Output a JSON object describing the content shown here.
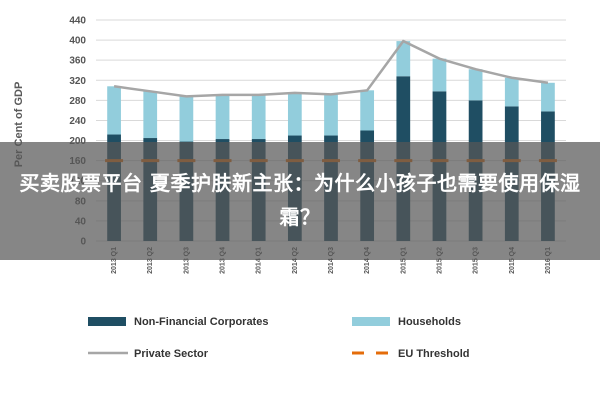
{
  "chart_data": {
    "type": "bar",
    "stacked": true,
    "ylabel": "Per Cent of GDP",
    "ylim": [
      0,
      440
    ],
    "yticks": [
      0,
      40,
      80,
      120,
      160,
      200,
      240,
      280,
      320,
      360,
      400,
      440
    ],
    "grid": true,
    "legend_position": "bottom",
    "categories": [
      "2013 Q1",
      "2013 Q2",
      "2013 Q3",
      "2013 Q4",
      "2014 Q1",
      "2014 Q2",
      "2014 Q3",
      "2014 Q4",
      "2015 Q1",
      "2015 Q2",
      "2015 Q3",
      "2015 Q4",
      "2016 Q1"
    ],
    "series": [
      {
        "name": "Non-Financial Corporates",
        "kind": "bar",
        "color": "#1f4e63",
        "values": [
          212,
          205,
          198,
          203,
          203,
          210,
          210,
          220,
          328,
          298,
          280,
          268,
          258
        ]
      },
      {
        "name": "Households",
        "kind": "bar",
        "color": "#92cddc",
        "values": [
          96,
          93,
          90,
          88,
          88,
          85,
          82,
          80,
          70,
          65,
          62,
          57,
          57
        ]
      },
      {
        "name": "Private Sector",
        "kind": "line",
        "color": "#a6a6a6",
        "values": [
          308,
          298,
          288,
          291,
          291,
          295,
          292,
          300,
          398,
          363,
          342,
          325,
          315
        ]
      },
      {
        "name": "EU Threshold",
        "kind": "dashed",
        "color": "#e46c0a",
        "values": [
          160,
          160,
          160,
          160,
          160,
          160,
          160,
          160,
          160,
          160,
          160,
          160,
          160
        ]
      }
    ]
  },
  "overlay": {
    "text": "买卖股票平台 夏季护肤新主张：为什么小孩子也需要使用保湿霜？"
  }
}
